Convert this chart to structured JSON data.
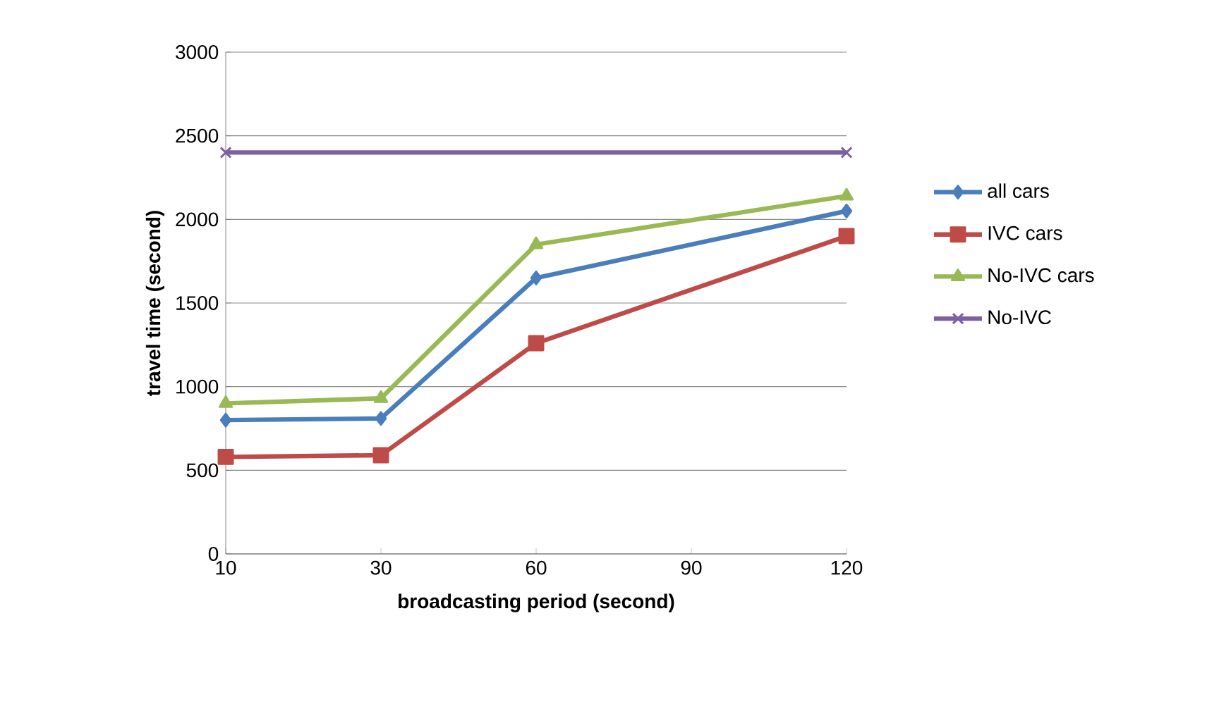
{
  "chart_data": {
    "type": "line",
    "xlabel": "broadcasting period (second)",
    "ylabel": "travel time (second)",
    "categories": [
      "10",
      "30",
      "60",
      "90",
      "120"
    ],
    "ylim": [
      0,
      3000
    ],
    "yticks": [
      0,
      500,
      1000,
      1500,
      2000,
      2500,
      3000
    ],
    "grid": "y",
    "legend": "right",
    "series": [
      {
        "name": "all cars",
        "color": "#4a7ebb",
        "marker": "diamond",
        "values": [
          800,
          810,
          1650,
          null,
          2050
        ]
      },
      {
        "name": "IVC cars",
        "color": "#be4b48",
        "marker": "square",
        "values": [
          580,
          590,
          1260,
          null,
          1900
        ]
      },
      {
        "name": "No-IVC cars",
        "color": "#98b954",
        "marker": "triangle",
        "values": [
          900,
          930,
          1850,
          null,
          2140
        ]
      },
      {
        "name": "No-IVC",
        "color": "#7d60a0",
        "marker": "cross",
        "values": [
          2400,
          null,
          null,
          null,
          2400
        ]
      }
    ]
  }
}
